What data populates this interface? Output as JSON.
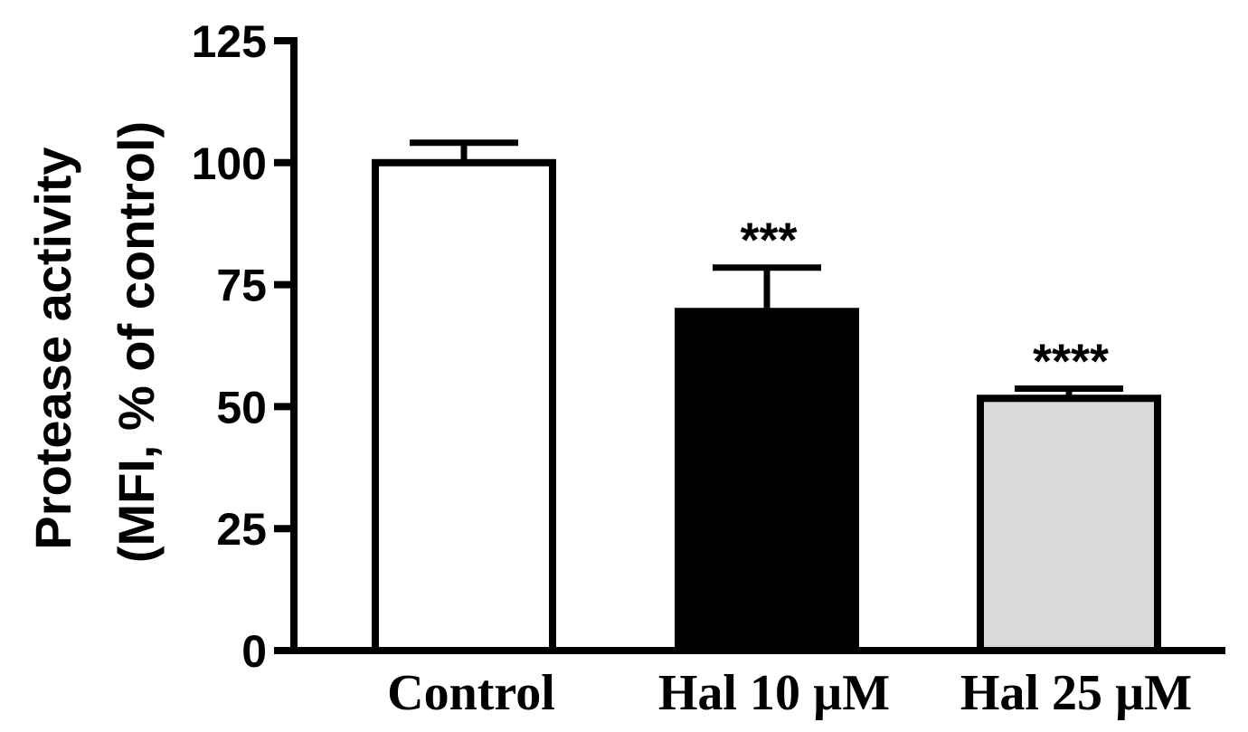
{
  "chart_data": {
    "type": "bar",
    "title": "",
    "xlabel": "",
    "ylabel_line1": "Protease activity",
    "ylabel_line2": "(MFI, % of control)",
    "categories": [
      "Control",
      "Hal 10 µM",
      "Hal 25 µM"
    ],
    "values": [
      100,
      69.5,
      51.7
    ],
    "errors": [
      4.1,
      9.0,
      2.0
    ],
    "significance": [
      "",
      "***",
      "****"
    ],
    "bar_colors": [
      "#ffffff",
      "#000000",
      "#d9d9d9"
    ],
    "ylim": [
      0,
      125
    ],
    "yticks": [
      0,
      25,
      50,
      75,
      100,
      125
    ],
    "grid": false,
    "legend": "none"
  }
}
